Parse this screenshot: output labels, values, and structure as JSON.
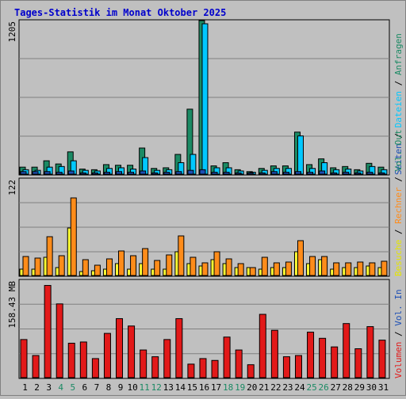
{
  "title": "Tages-Statistik im Monat Oktober 2025",
  "colors": {
    "background": "#c0c0c0",
    "title": "#0000cc",
    "anfragen": "#1b8a64",
    "dateien": "#00c8ff",
    "seiten": "#1c4fb5",
    "besuche": "#ffff33",
    "rechner": "#ff8c1a",
    "volumen": "#e21919",
    "weekend_label": "#1b8a64",
    "weekday_label": "#000000"
  },
  "chart_data": [
    {
      "type": "bar",
      "name": "anfragen-dateien-seiten",
      "y_max_label": "1205",
      "ylim": [
        0,
        1205
      ],
      "categories": [
        "1",
        "2",
        "3",
        "4",
        "5",
        "6",
        "7",
        "8",
        "9",
        "10",
        "11",
        "12",
        "13",
        "14",
        "15",
        "16",
        "17",
        "18",
        "19",
        "20",
        "21",
        "22",
        "23",
        "24",
        "25",
        "26",
        "27",
        "28",
        "29",
        "30",
        "31"
      ],
      "weekend_days": [
        "4",
        "5",
        "11",
        "12",
        "18",
        "19",
        "25",
        "26"
      ],
      "series": [
        {
          "name": "Anfragen",
          "values": [
            55,
            55,
            105,
            80,
            175,
            40,
            35,
            75,
            70,
            70,
            205,
            45,
            50,
            155,
            510,
            1205,
            65,
            90,
            35,
            20,
            45,
            65,
            65,
            330,
            75,
            120,
            50,
            60,
            35,
            85,
            55
          ]
        },
        {
          "name": "Dateien",
          "values": [
            35,
            30,
            55,
            60,
            105,
            30,
            25,
            45,
            50,
            40,
            130,
            30,
            35,
            90,
            155,
            1180,
            50,
            50,
            25,
            15,
            30,
            45,
            45,
            300,
            45,
            90,
            35,
            40,
            25,
            60,
            35
          ]
        },
        {
          "name": "Seiten",
          "values": [
            20,
            20,
            20,
            15,
            25,
            10,
            10,
            15,
            20,
            15,
            25,
            10,
            15,
            20,
            30,
            35,
            15,
            15,
            10,
            10,
            10,
            20,
            15,
            20,
            15,
            25,
            10,
            15,
            10,
            15,
            10
          ]
        }
      ],
      "legend": [
        "Anfragen",
        "Dateien",
        "Seiten"
      ]
    },
    {
      "type": "bar",
      "name": "besuche-rechner",
      "y_max_label": "122",
      "ylim": [
        0,
        122
      ],
      "categories": [
        "1",
        "2",
        "3",
        "4",
        "5",
        "6",
        "7",
        "8",
        "9",
        "10",
        "11",
        "12",
        "13",
        "14",
        "15",
        "16",
        "17",
        "18",
        "19",
        "20",
        "21",
        "22",
        "23",
        "24",
        "25",
        "26",
        "27",
        "28",
        "29",
        "30",
        "31"
      ],
      "series": [
        {
          "name": "Besuche",
          "values": [
            8,
            8,
            23,
            10,
            60,
            5,
            6,
            8,
            15,
            8,
            15,
            8,
            8,
            30,
            15,
            12,
            20,
            15,
            10,
            10,
            8,
            10,
            10,
            30,
            15,
            20,
            8,
            10,
            10,
            12,
            10
          ]
        },
        {
          "name": "Rechner",
          "values": [
            24,
            22,
            49,
            25,
            98,
            20,
            13,
            21,
            31,
            25,
            34,
            19,
            26,
            50,
            23,
            16,
            30,
            21,
            15,
            10,
            23,
            16,
            17,
            44,
            24,
            24,
            16,
            16,
            17,
            16,
            18
          ]
        }
      ],
      "legend": [
        "Besuche",
        "Rechner"
      ]
    },
    {
      "type": "bar",
      "name": "volumen",
      "y_max_label": "158.43 MB",
      "ylim": [
        0,
        158.43
      ],
      "categories": [
        "1",
        "2",
        "3",
        "4",
        "5",
        "6",
        "7",
        "8",
        "9",
        "10",
        "11",
        "12",
        "13",
        "14",
        "15",
        "16",
        "17",
        "18",
        "19",
        "20",
        "21",
        "22",
        "23",
        "24",
        "25",
        "26",
        "27",
        "28",
        "29",
        "30",
        "31"
      ],
      "series": [
        {
          "name": "Volumen",
          "values": [
            62,
            36,
            150,
            120,
            56,
            58,
            31,
            72,
            96,
            84,
            45,
            34,
            62,
            96,
            22,
            31,
            28,
            66,
            45,
            21,
            103,
            77,
            34,
            36,
            74,
            64,
            50,
            88,
            47,
            83,
            61
          ]
        }
      ],
      "legend": [
        "Volumen",
        "Vol. In",
        "Vol. Out"
      ]
    }
  ],
  "legend_right": {
    "top": [
      {
        "text": "Seiten",
        "color": "#1c4fb5"
      },
      {
        "text": " / ",
        "color": "#000000"
      },
      {
        "text": "Dateien",
        "color": "#00c8ff"
      },
      {
        "text": " / ",
        "color": "#000000"
      },
      {
        "text": "Anfragen",
        "color": "#1b8a64"
      }
    ],
    "middle": [
      {
        "text": "Besuche",
        "color": "#e5e500"
      },
      {
        "text": " / ",
        "color": "#000000"
      },
      {
        "text": "Rechner",
        "color": "#ff8c1a"
      },
      {
        "text": " / ",
        "color": "#000000"
      },
      {
        "text": "Vol. Out",
        "color": "#1b8a64"
      }
    ],
    "bottom": [
      {
        "text": "Volumen",
        "color": "#e21919"
      },
      {
        "text": " / ",
        "color": "#000000"
      },
      {
        "text": "Vol. In",
        "color": "#1c4fb5"
      }
    ]
  }
}
